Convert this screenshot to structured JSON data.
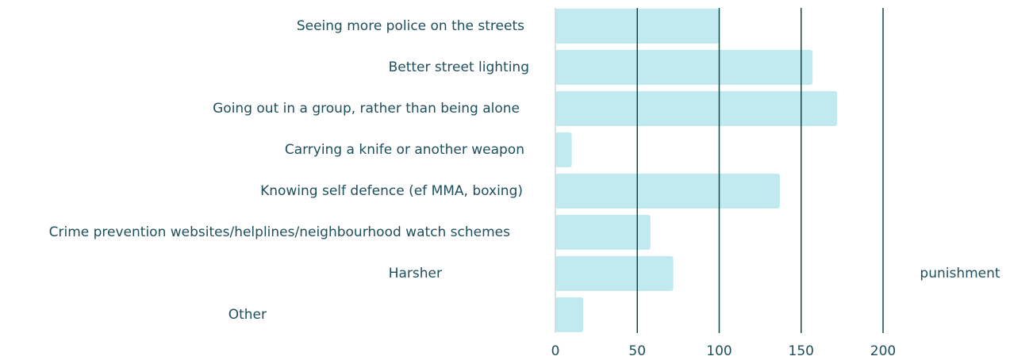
{
  "chart_data": {
    "type": "hbar",
    "categories": [
      "Seeing more police on the streets",
      "Better street lighting",
      "Going out in a group, rather than being alone",
      "Carrying a knife or another weapon",
      "Knowing self defence (ef MMA, boxing)",
      "Crime prevention websites/helplines/neighbourhood watch schemes",
      "Harsher",
      "Other"
    ],
    "values": [
      100,
      157,
      172,
      10,
      137,
      58,
      72,
      17
    ],
    "color": "#c0eaf0",
    "annotation": "punishment",
    "xlim": [
      0,
      200
    ],
    "xticks": [
      0,
      50,
      100,
      150,
      200
    ],
    "grid": true
  }
}
